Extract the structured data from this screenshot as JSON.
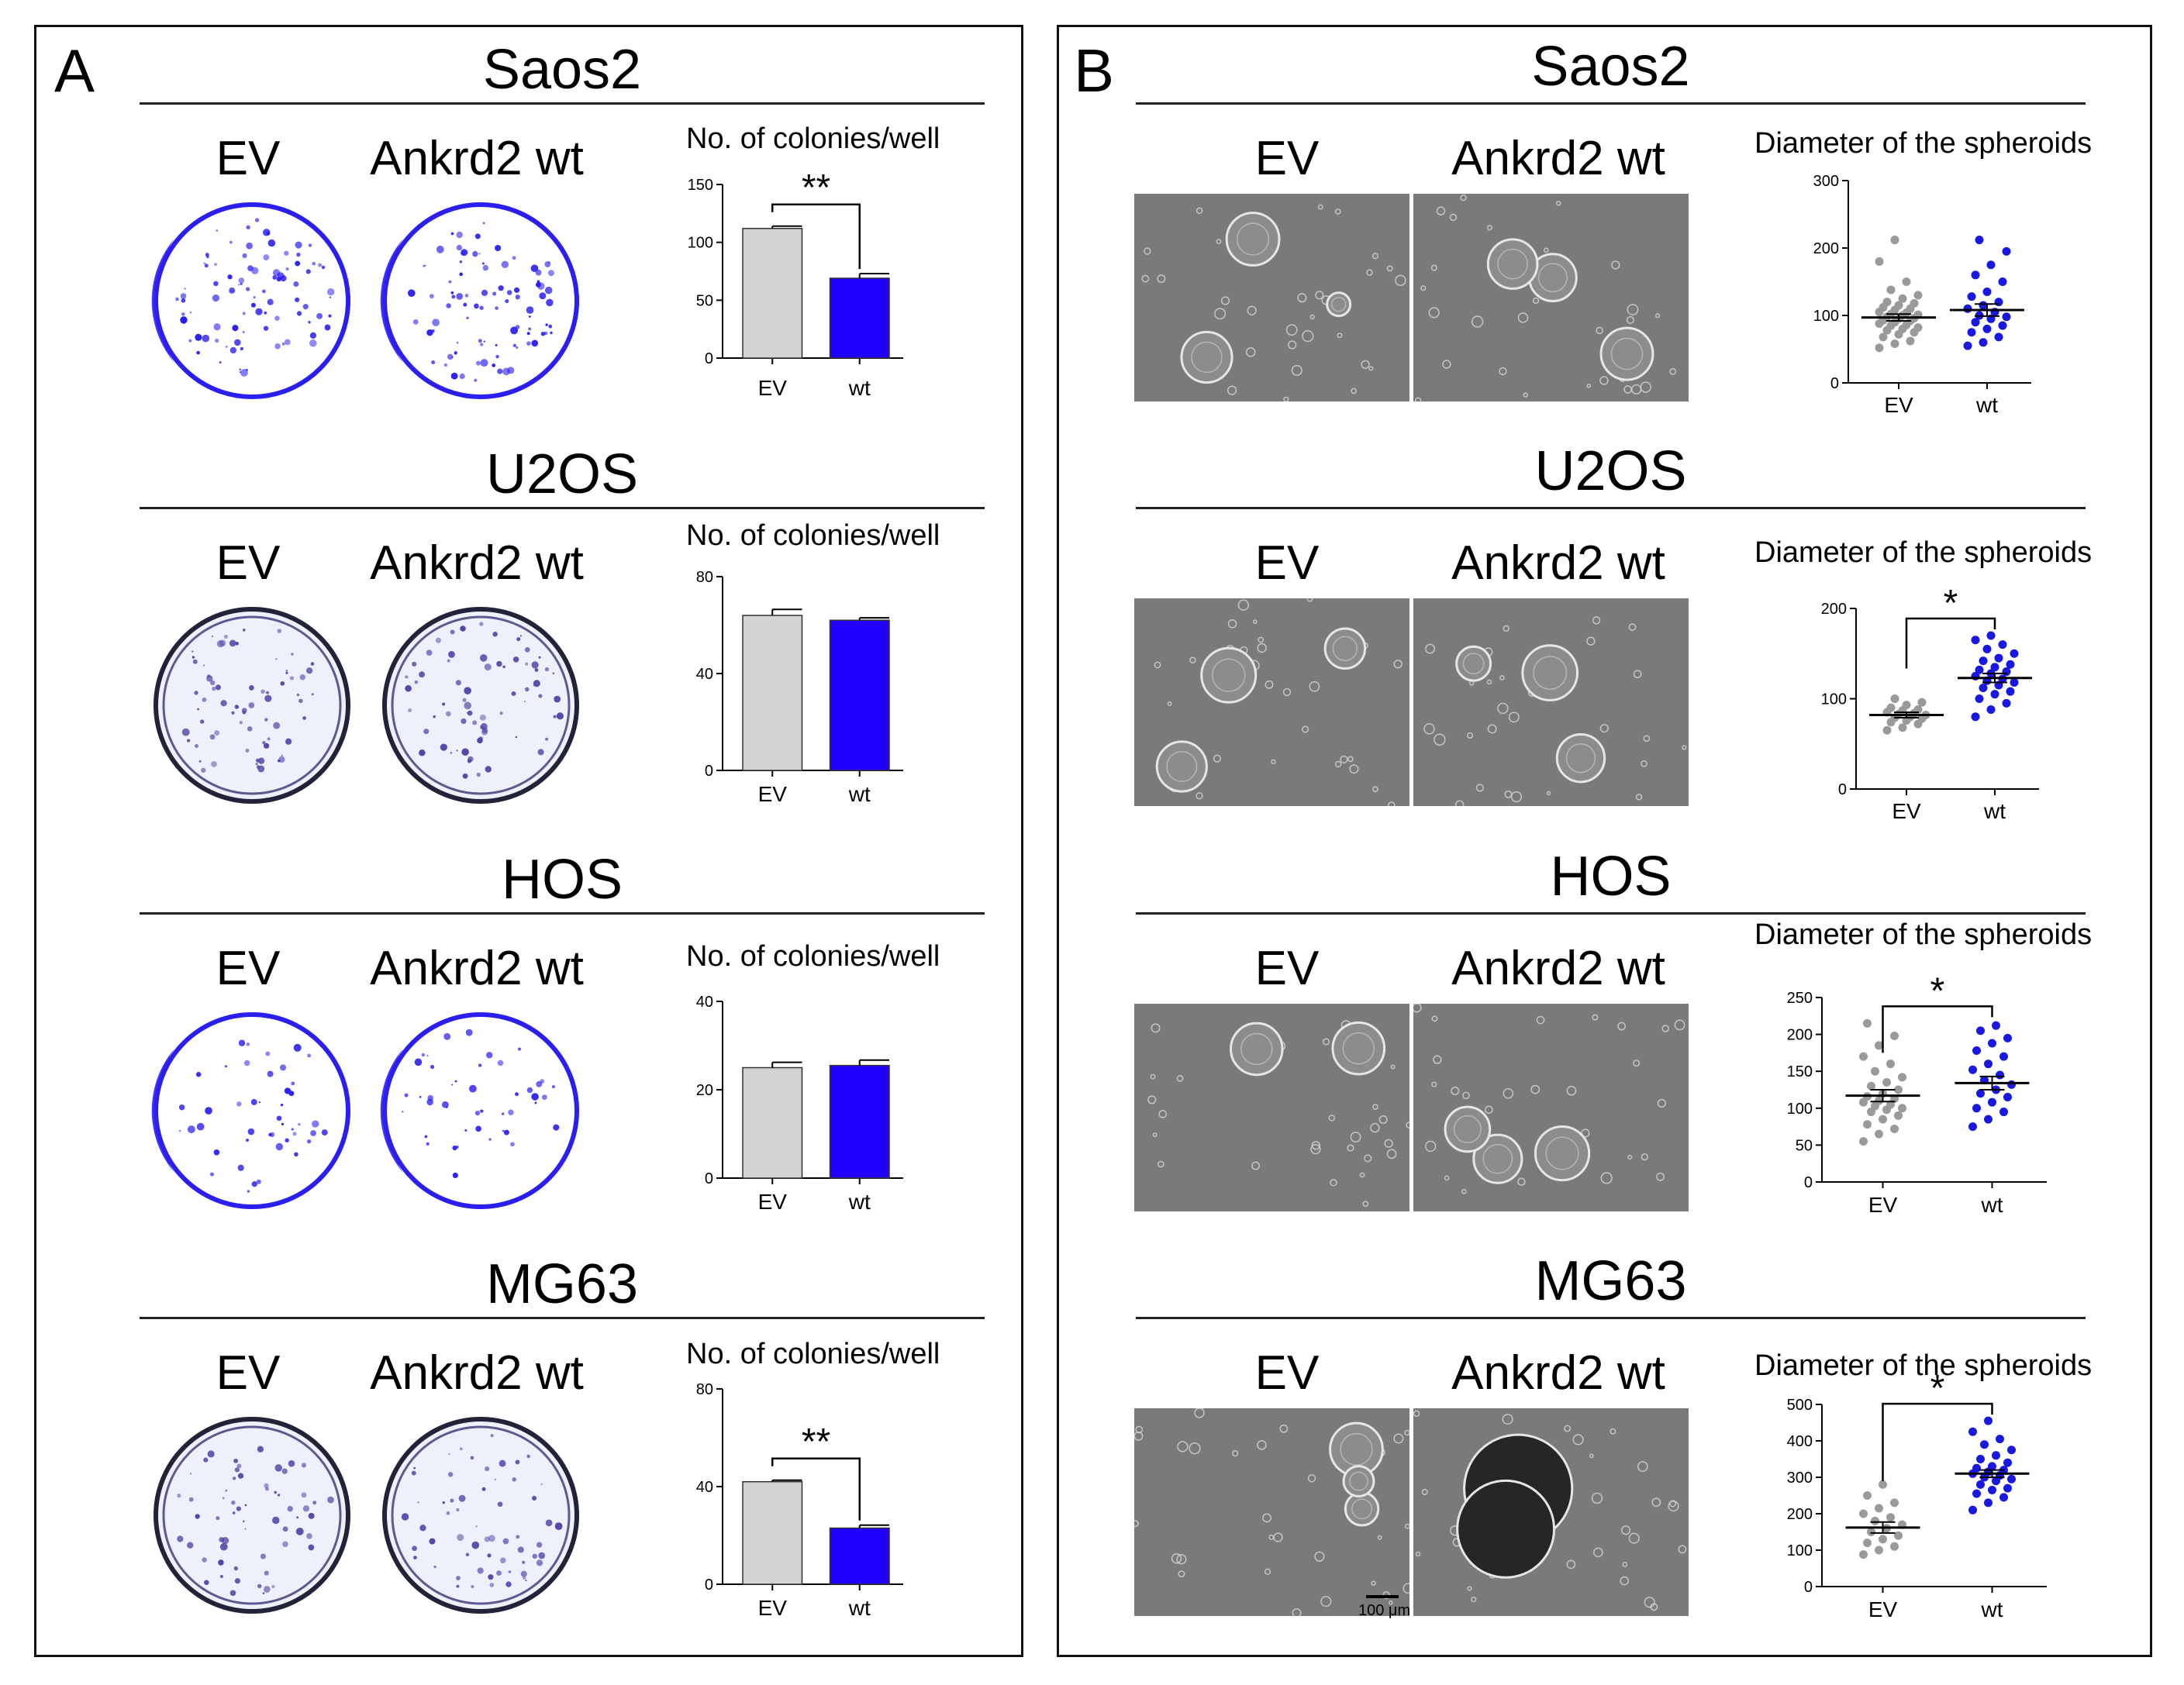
{
  "panels": {
    "A": {
      "label": "A"
    },
    "B": {
      "label": "B"
    }
  },
  "colors": {
    "ev": "#d3d3d3",
    "wt": "#2200ff",
    "ev_dot": "#9a9a9a",
    "wt_dot": "#1818e0"
  },
  "panelA": [
    {
      "cell_line": "Saos2",
      "ev_label": "EV",
      "wt_label": "Ankrd2 wt"
    },
    {
      "cell_line": "U2OS",
      "ev_label": "EV",
      "wt_label": "Ankrd2 wt"
    },
    {
      "cell_line": "HOS",
      "ev_label": "EV",
      "wt_label": "Ankrd2 wt"
    },
    {
      "cell_line": "MG63",
      "ev_label": "EV",
      "wt_label": "Ankrd2 wt"
    }
  ],
  "panelB": [
    {
      "cell_line": "Saos2",
      "ev_label": "EV",
      "wt_label": "Ankrd2 wt"
    },
    {
      "cell_line": "U2OS",
      "ev_label": "EV",
      "wt_label": "Ankrd2 wt"
    },
    {
      "cell_line": "HOS",
      "ev_label": "EV",
      "wt_label": "Ankrd2 wt"
    },
    {
      "cell_line": "MG63",
      "ev_label": "EV",
      "wt_label": "Ankrd2 wt",
      "scale_bar": "100 μm"
    }
  ],
  "chart_data": [
    {
      "id": "A1",
      "type": "bar",
      "title": "No. of colonies/well",
      "categories": [
        "EV",
        "wt"
      ],
      "values": [
        112,
        69
      ],
      "errors": [
        2,
        4
      ],
      "ylim": [
        0,
        150
      ],
      "yticks": [
        0,
        50,
        100,
        150
      ],
      "significance": "**"
    },
    {
      "id": "A2",
      "type": "bar",
      "title": "No. of colonies/well",
      "categories": [
        "EV",
        "wt"
      ],
      "values": [
        64,
        62
      ],
      "errors": [
        2.5,
        1
      ],
      "ylim": [
        0,
        80
      ],
      "yticks": [
        0,
        40,
        80
      ],
      "significance": ""
    },
    {
      "id": "A3",
      "type": "bar",
      "title": "No. of colonies/well",
      "categories": [
        "EV",
        "wt"
      ],
      "values": [
        25,
        25.5
      ],
      "errors": [
        1.2,
        1.2
      ],
      "ylim": [
        0,
        40
      ],
      "yticks": [
        0,
        20,
        40
      ],
      "significance": ""
    },
    {
      "id": "A4",
      "type": "bar",
      "title": "No. of colonies/well",
      "categories": [
        "EV",
        "wt"
      ],
      "values": [
        42,
        23
      ],
      "errors": [
        0.6,
        1.2
      ],
      "ylim": [
        0,
        80
      ],
      "yticks": [
        0,
        40,
        80
      ],
      "significance": "**"
    },
    {
      "id": "B1",
      "type": "scatter",
      "title": "Diameter of the spheroids",
      "categories": [
        "EV",
        "wt"
      ],
      "points": [
        [
          52,
          58,
          62,
          68,
          72,
          75,
          78,
          80,
          82,
          85,
          86,
          88,
          90,
          92,
          93,
          95,
          96,
          98,
          100,
          101,
          102,
          104,
          105,
          108,
          110,
          112,
          115,
          118,
          120,
          125,
          130,
          138,
          150,
          180,
          212
        ],
        [
          55,
          60,
          68,
          75,
          80,
          85,
          90,
          95,
          98,
          100,
          105,
          110,
          115,
          120,
          128,
          135,
          150,
          160,
          175,
          195,
          212
        ]
      ],
      "mean": [
        97,
        108
      ],
      "sem": [
        5,
        9
      ],
      "ylim": [
        0,
        300
      ],
      "yticks": [
        0,
        100,
        200,
        300
      ],
      "significance": ""
    },
    {
      "id": "B2",
      "type": "scatter",
      "title": "Diameter of the spheroids",
      "categories": [
        "EV",
        "wt"
      ],
      "points": [
        [
          65,
          68,
          72,
          74,
          76,
          78,
          79,
          80,
          82,
          83,
          84,
          85,
          87,
          88,
          90,
          93,
          96,
          100
        ],
        [
          80,
          88,
          95,
          100,
          105,
          108,
          112,
          115,
          118,
          120,
          122,
          125,
          128,
          130,
          132,
          135,
          138,
          142,
          145,
          150,
          155,
          160,
          165,
          170
        ]
      ],
      "mean": [
        82,
        123
      ],
      "sem": [
        3,
        5
      ],
      "ylim": [
        0,
        200
      ],
      "yticks": [
        0,
        100,
        200
      ],
      "significance": "*"
    },
    {
      "id": "B3",
      "type": "scatter",
      "title": "Diameter of the spheroids",
      "categories": [
        "EV",
        "wt"
      ],
      "points": [
        [
          55,
          65,
          72,
          78,
          85,
          90,
          95,
          98,
          100,
          103,
          105,
          108,
          110,
          113,
          116,
          120,
          125,
          130,
          135,
          142,
          150,
          160,
          170,
          185,
          198,
          215
        ],
        [
          75,
          85,
          95,
          100,
          108,
          115,
          120,
          125,
          132,
          138,
          145,
          152,
          160,
          170,
          178,
          188,
          195,
          205,
          212
        ]
      ],
      "mean": [
        117,
        134
      ],
      "sem": [
        8,
        9
      ],
      "ylim": [
        0,
        250
      ],
      "yticks": [
        0,
        50,
        100,
        150,
        200,
        250
      ],
      "significance": "*"
    },
    {
      "id": "B4",
      "type": "scatter",
      "title": "Diameter of the spheroids",
      "categories": [
        "EV",
        "wt"
      ],
      "points": [
        [
          88,
          100,
          110,
          120,
          130,
          140,
          150,
          160,
          170,
          180,
          190,
          200,
          215,
          230,
          250,
          280
        ],
        [
          210,
          230,
          245,
          255,
          265,
          270,
          280,
          290,
          295,
          300,
          305,
          310,
          315,
          320,
          325,
          330,
          340,
          350,
          360,
          375,
          390,
          405,
          425,
          455
        ]
      ],
      "mean": [
        162,
        310
      ],
      "sem": [
        15,
        10
      ],
      "ylim": [
        0,
        500
      ],
      "yticks": [
        0,
        100,
        200,
        300,
        400,
        500
      ],
      "significance": "*"
    }
  ]
}
